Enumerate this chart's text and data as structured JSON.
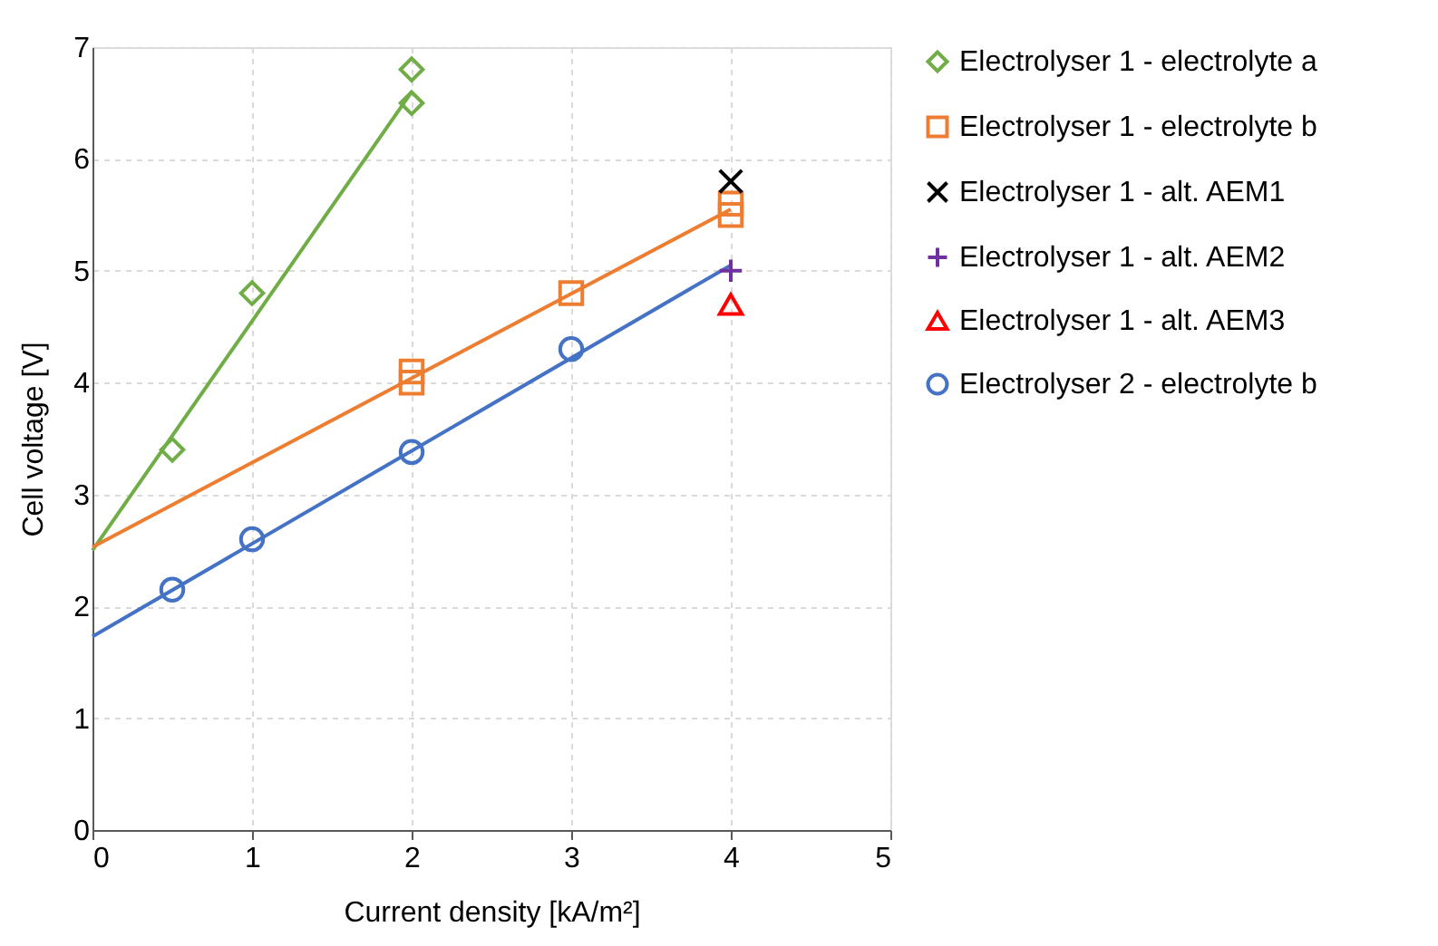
{
  "chart_data": {
    "type": "scatter",
    "xlabel": "Current density [kA/m²]",
    "ylabel": "Cell voltage [V]",
    "xlim": [
      0,
      5
    ],
    "xticks": [
      0,
      1,
      2,
      3,
      4,
      5
    ],
    "ylim": [
      0,
      7
    ],
    "yticks": [
      0,
      1,
      2,
      3,
      4,
      5,
      6,
      7
    ],
    "grid": true,
    "legend": "right",
    "series": [
      {
        "name": "Electrolyser 1 - electrolyte a",
        "color": "#70ad47",
        "marker": "diamond",
        "x": [
          0.5,
          1,
          2,
          2
        ],
        "values": [
          3.4,
          4.8,
          6.5,
          6.8
        ]
      },
      {
        "name": "Electrolyser 1 - electrolyte b",
        "color": "#ed7d31",
        "marker": "square",
        "x": [
          2,
          2,
          3,
          4,
          4
        ],
        "values": [
          4.0,
          4.1,
          4.8,
          5.5,
          5.6
        ]
      },
      {
        "name": "Electrolyser 1 - alt. AEM1",
        "color": "#000000",
        "marker": "cross",
        "x": [
          4
        ],
        "values": [
          5.8
        ]
      },
      {
        "name": "Electrolyser 1 - alt. AEM2",
        "color": "#7030a0",
        "marker": "plus",
        "x": [
          4
        ],
        "values": [
          5.0
        ]
      },
      {
        "name": "Electrolyser 1 - alt. AEM3",
        "color": "#ff0000",
        "marker": "triangle",
        "x": [
          4
        ],
        "values": [
          4.7
        ]
      },
      {
        "name": "Electrolyser 2 - electrolyte b",
        "color": "#4472c4",
        "marker": "circle",
        "x": [
          0.5,
          1,
          2,
          3
        ],
        "values": [
          2.15,
          2.6,
          3.38,
          4.3
        ]
      },
      {
        "type": "line",
        "color": "#70ad47",
        "marker": "none",
        "line_style": "solid",
        "x": [
          0,
          2
        ],
        "values": [
          2.5,
          6.6
        ]
      },
      {
        "type": "line",
        "color": "#ed7d31",
        "marker": "none",
        "line_style": "solid",
        "x": [
          0,
          4
        ],
        "values": [
          2.53,
          5.55
        ]
      },
      {
        "type": "line",
        "color": "#4472c4",
        "marker": "none",
        "line_style": "solid",
        "x": [
          0,
          4
        ],
        "values": [
          1.73,
          5.05
        ]
      }
    ]
  }
}
